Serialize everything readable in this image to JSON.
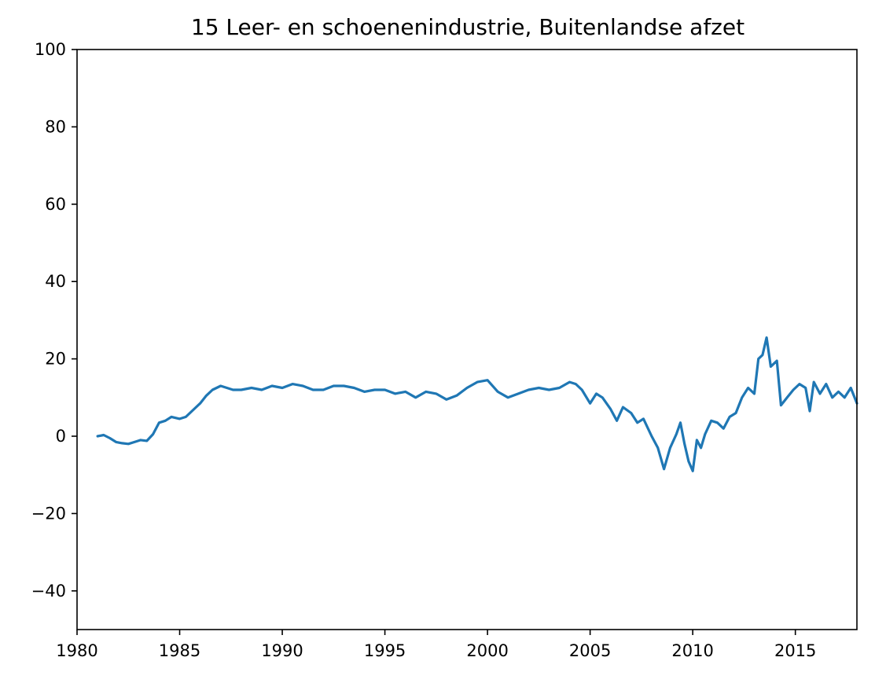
{
  "chart_data": {
    "type": "line",
    "title": "15 Leer- en schoenenindustrie, Buitenlandse afzet",
    "xlabel": "",
    "ylabel": "",
    "xlim": [
      1980,
      2018
    ],
    "ylim": [
      -50,
      100
    ],
    "x_ticks": [
      1980,
      1985,
      1990,
      1995,
      2000,
      2005,
      2010,
      2015
    ],
    "y_ticks": [
      -40,
      -20,
      0,
      20,
      40,
      60,
      80,
      100
    ],
    "y_tick_labels": [
      "−40",
      "−20",
      "0",
      "20",
      "40",
      "60",
      "80",
      "100"
    ],
    "grid": false,
    "legend": "none",
    "series": [
      {
        "color": "#1f77b4",
        "x": [
          1981.0,
          1981.3,
          1981.6,
          1981.9,
          1982.2,
          1982.5,
          1982.8,
          1983.1,
          1983.4,
          1983.7,
          1984.0,
          1984.3,
          1984.6,
          1985.0,
          1985.3,
          1985.6,
          1986.0,
          1986.3,
          1986.6,
          1987.0,
          1987.3,
          1987.6,
          1988.0,
          1988.5,
          1989.0,
          1989.5,
          1990.0,
          1990.5,
          1991.0,
          1991.5,
          1992.0,
          1992.5,
          1993.0,
          1993.5,
          1994.0,
          1994.5,
          1995.0,
          1995.5,
          1996.0,
          1996.5,
          1997.0,
          1997.5,
          1998.0,
          1998.5,
          1999.0,
          1999.5,
          2000.0,
          2000.5,
          2001.0,
          2001.5,
          2002.0,
          2002.5,
          2003.0,
          2003.5,
          2004.0,
          2004.3,
          2004.6,
          2005.0,
          2005.3,
          2005.6,
          2006.0,
          2006.3,
          2006.6,
          2007.0,
          2007.3,
          2007.6,
          2008.0,
          2008.3,
          2008.6,
          2008.9,
          2009.2,
          2009.4,
          2009.6,
          2009.8,
          2010.0,
          2010.2,
          2010.4,
          2010.6,
          2010.9,
          2011.2,
          2011.5,
          2011.8,
          2012.1,
          2012.4,
          2012.7,
          2013.0,
          2013.2,
          2013.4,
          2013.6,
          2013.8,
          2014.1,
          2014.3,
          2014.6,
          2014.9,
          2015.2,
          2015.5,
          2015.7,
          2015.9,
          2016.2,
          2016.5,
          2016.8,
          2017.1,
          2017.4,
          2017.7,
          2018.0
        ],
        "y": [
          0,
          0.3,
          -0.5,
          -1.5,
          -1.8,
          -2.0,
          -1.5,
          -1.0,
          -1.2,
          0.5,
          3.5,
          4.0,
          5.0,
          4.5,
          5.0,
          6.5,
          8.5,
          10.5,
          12.0,
          13.0,
          12.5,
          12.0,
          12.0,
          12.5,
          12.0,
          13.0,
          12.5,
          13.5,
          13.0,
          12.0,
          12.0,
          13.0,
          13.0,
          12.5,
          11.5,
          12.0,
          12.0,
          11.0,
          11.5,
          10.0,
          11.5,
          11.0,
          9.5,
          10.5,
          12.5,
          14.0,
          14.5,
          11.5,
          10.0,
          11.0,
          12.0,
          12.5,
          12.0,
          12.5,
          14.0,
          13.5,
          12.0,
          8.5,
          11.0,
          10.0,
          7.0,
          4.0,
          7.5,
          6.0,
          3.5,
          4.5,
          0.0,
          -3.0,
          -8.5,
          -3.0,
          0.5,
          3.5,
          -2.0,
          -6.5,
          -9.0,
          -1.0,
          -3.0,
          0.5,
          4.0,
          3.5,
          2.0,
          5.0,
          6.0,
          10.0,
          12.5,
          11.0,
          20.0,
          21.0,
          25.5,
          18.0,
          19.5,
          8.0,
          10.0,
          12.0,
          13.5,
          12.5,
          6.5,
          14.0,
          11.0,
          13.5,
          10.0,
          11.5,
          10.0,
          12.5,
          8.5
        ]
      }
    ]
  }
}
